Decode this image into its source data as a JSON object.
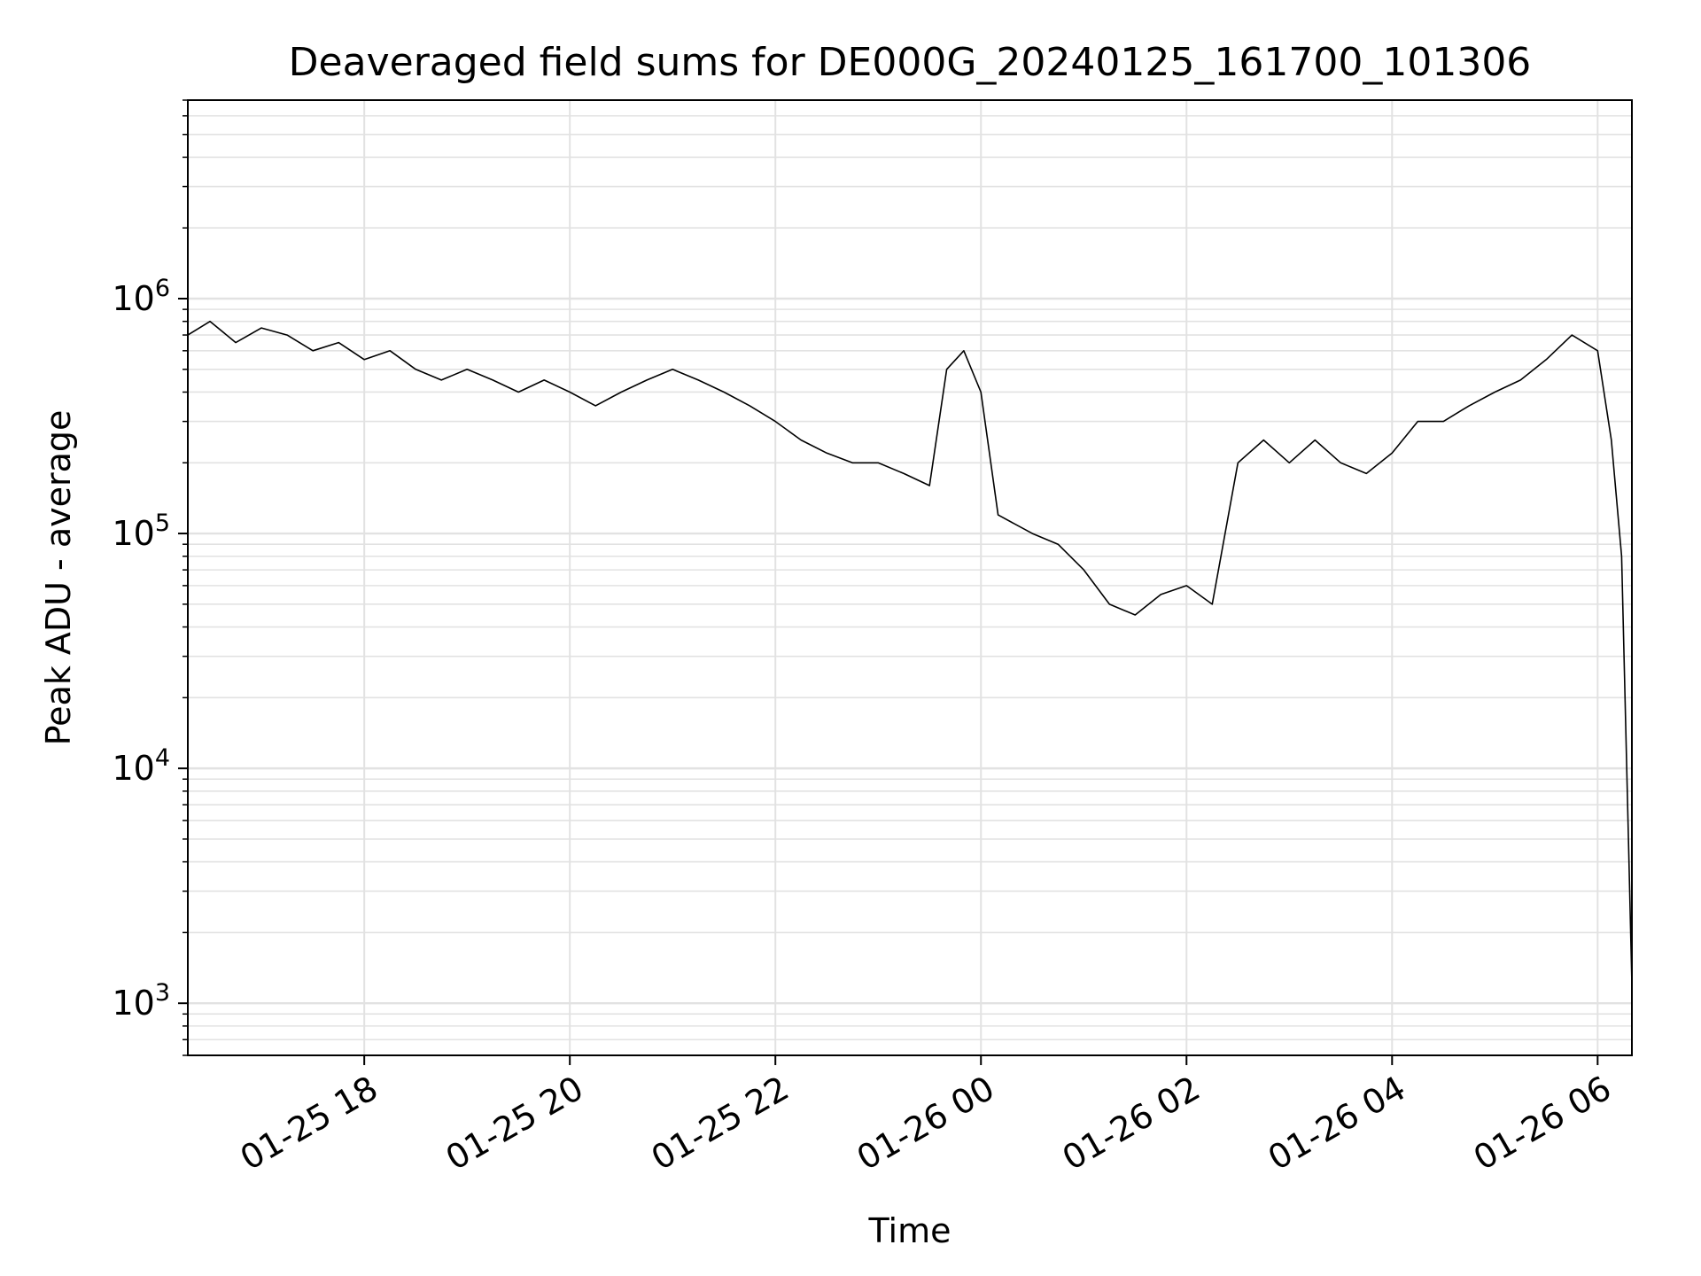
{
  "chart_data": {
    "type": "line",
    "title": "Deaveraged field sums for DE000G_20240125_161700_101306",
    "xlabel": "Time",
    "ylabel": "Peak ADU - average",
    "yscale": "log",
    "xlim": [
      "2024-01-25 16:17",
      "2024-01-26 06:20"
    ],
    "ylim": [
      600,
      7000000
    ],
    "grid": true,
    "line_color": "#000000",
    "x_ticks": [
      {
        "t": "2024-01-25 18:00",
        "label": "01-25 18"
      },
      {
        "t": "2024-01-25 20:00",
        "label": "01-25 20"
      },
      {
        "t": "2024-01-25 22:00",
        "label": "01-25 22"
      },
      {
        "t": "2024-01-26 00:00",
        "label": "01-26 00"
      },
      {
        "t": "2024-01-26 02:00",
        "label": "01-26 02"
      },
      {
        "t": "2024-01-26 04:00",
        "label": "01-26 04"
      },
      {
        "t": "2024-01-26 06:00",
        "label": "01-26 06"
      }
    ],
    "y_ticks": [
      {
        "value": 1000,
        "base": "10",
        "exp": "3"
      },
      {
        "value": 10000,
        "base": "10",
        "exp": "4"
      },
      {
        "value": 100000,
        "base": "10",
        "exp": "5"
      },
      {
        "value": 1000000,
        "base": "10",
        "exp": "6"
      }
    ],
    "series": [
      {
        "points": [
          [
            "2024-01-25 16:17",
            700000
          ],
          [
            "2024-01-25 16:30",
            800000
          ],
          [
            "2024-01-25 16:45",
            650000
          ],
          [
            "2024-01-25 17:00",
            750000
          ],
          [
            "2024-01-25 17:15",
            700000
          ],
          [
            "2024-01-25 17:30",
            600000
          ],
          [
            "2024-01-25 17:45",
            650000
          ],
          [
            "2024-01-25 18:00",
            550000
          ],
          [
            "2024-01-25 18:15",
            600000
          ],
          [
            "2024-01-25 18:30",
            500000
          ],
          [
            "2024-01-25 18:45",
            450000
          ],
          [
            "2024-01-25 19:00",
            500000
          ],
          [
            "2024-01-25 19:15",
            450000
          ],
          [
            "2024-01-25 19:30",
            400000
          ],
          [
            "2024-01-25 19:45",
            450000
          ],
          [
            "2024-01-25 20:00",
            400000
          ],
          [
            "2024-01-25 20:15",
            350000
          ],
          [
            "2024-01-25 20:30",
            400000
          ],
          [
            "2024-01-25 20:45",
            450000
          ],
          [
            "2024-01-25 21:00",
            500000
          ],
          [
            "2024-01-25 21:15",
            450000
          ],
          [
            "2024-01-25 21:30",
            400000
          ],
          [
            "2024-01-25 21:45",
            350000
          ],
          [
            "2024-01-25 22:00",
            300000
          ],
          [
            "2024-01-25 22:15",
            250000
          ],
          [
            "2024-01-25 22:30",
            220000
          ],
          [
            "2024-01-25 22:45",
            200000
          ],
          [
            "2024-01-25 23:00",
            200000
          ],
          [
            "2024-01-25 23:15",
            180000
          ],
          [
            "2024-01-25 23:30",
            160000
          ],
          [
            "2024-01-25 23:40",
            500000
          ],
          [
            "2024-01-25 23:50",
            600000
          ],
          [
            "2024-01-26 00:00",
            400000
          ],
          [
            "2024-01-26 00:10",
            120000
          ],
          [
            "2024-01-26 00:30",
            100000
          ],
          [
            "2024-01-26 00:45",
            90000
          ],
          [
            "2024-01-26 01:00",
            70000
          ],
          [
            "2024-01-26 01:15",
            50000
          ],
          [
            "2024-01-26 01:30",
            45000
          ],
          [
            "2024-01-26 01:45",
            55000
          ],
          [
            "2024-01-26 02:00",
            60000
          ],
          [
            "2024-01-26 02:15",
            50000
          ],
          [
            "2024-01-26 02:30",
            200000
          ],
          [
            "2024-01-26 02:45",
            250000
          ],
          [
            "2024-01-26 03:00",
            200000
          ],
          [
            "2024-01-26 03:15",
            250000
          ],
          [
            "2024-01-26 03:30",
            200000
          ],
          [
            "2024-01-26 03:45",
            180000
          ],
          [
            "2024-01-26 04:00",
            220000
          ],
          [
            "2024-01-26 04:15",
            300000
          ],
          [
            "2024-01-26 04:30",
            300000
          ],
          [
            "2024-01-26 04:45",
            350000
          ],
          [
            "2024-01-26 05:00",
            400000
          ],
          [
            "2024-01-26 05:15",
            450000
          ],
          [
            "2024-01-26 05:30",
            550000
          ],
          [
            "2024-01-26 05:45",
            700000
          ],
          [
            "2024-01-26 06:00",
            600000
          ],
          [
            "2024-01-26 06:08",
            250000
          ],
          [
            "2024-01-26 06:14",
            80000
          ],
          [
            "2024-01-26 06:18",
            5000
          ],
          [
            "2024-01-26 06:20",
            1200
          ]
        ]
      }
    ]
  }
}
